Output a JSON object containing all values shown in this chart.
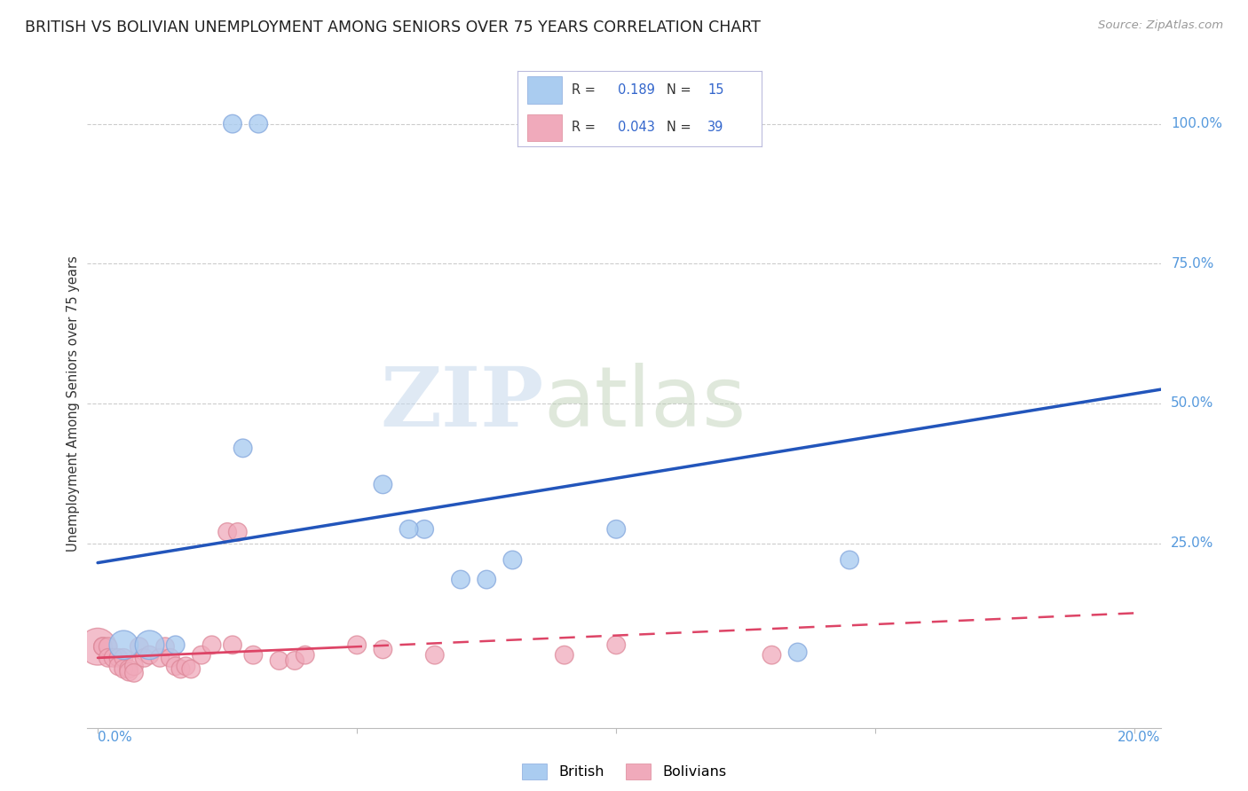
{
  "title": "BRITISH VS BOLIVIAN UNEMPLOYMENT AMONG SENIORS OVER 75 YEARS CORRELATION CHART",
  "source": "Source: ZipAtlas.com",
  "ylabel": "Unemployment Among Seniors over 75 years",
  "ytick_labels": [
    "100.0%",
    "75.0%",
    "50.0%",
    "25.0%"
  ],
  "ytick_values": [
    1.0,
    0.75,
    0.5,
    0.25
  ],
  "xlim": [
    -0.002,
    0.205
  ],
  "ylim": [
    -0.08,
    1.08
  ],
  "legend_british_R": "0.189",
  "legend_british_N": "15",
  "legend_bolivian_R": "0.043",
  "legend_bolivian_N": "39",
  "british_color": "#aaccf0",
  "british_edge_color": "#88aade",
  "bolivian_color": "#f0aabb",
  "bolivian_edge_color": "#dd8899",
  "british_line_color": "#2255bb",
  "bolivian_line_color": "#dd4466",
  "british_line_y0": 0.215,
  "british_line_y1": 0.525,
  "bolivian_line_y0": 0.045,
  "bolivian_line_y1": 0.125,
  "grid_color": "#cccccc",
  "spine_color": "#bbbbbb",
  "right_label_color": "#5599dd",
  "british_points": [
    [
      0.026,
      1.0
    ],
    [
      0.031,
      1.0
    ],
    [
      0.028,
      0.42
    ],
    [
      0.055,
      0.355
    ],
    [
      0.063,
      0.275
    ],
    [
      0.07,
      0.185
    ],
    [
      0.075,
      0.185
    ],
    [
      0.08,
      0.22
    ],
    [
      0.06,
      0.275
    ],
    [
      0.1,
      0.275
    ],
    [
      0.005,
      0.068
    ],
    [
      0.01,
      0.068
    ],
    [
      0.015,
      0.068
    ],
    [
      0.145,
      0.22
    ],
    [
      0.135,
      0.055
    ]
  ],
  "bolivian_points": [
    [
      0.0,
      0.065
    ],
    [
      0.001,
      0.065
    ],
    [
      0.001,
      0.065
    ],
    [
      0.002,
      0.065
    ],
    [
      0.002,
      0.045
    ],
    [
      0.003,
      0.045
    ],
    [
      0.004,
      0.045
    ],
    [
      0.004,
      0.03
    ],
    [
      0.005,
      0.045
    ],
    [
      0.005,
      0.025
    ],
    [
      0.006,
      0.025
    ],
    [
      0.006,
      0.02
    ],
    [
      0.007,
      0.03
    ],
    [
      0.007,
      0.018
    ],
    [
      0.008,
      0.065
    ],
    [
      0.009,
      0.045
    ],
    [
      0.01,
      0.05
    ],
    [
      0.012,
      0.045
    ],
    [
      0.013,
      0.065
    ],
    [
      0.014,
      0.045
    ],
    [
      0.015,
      0.03
    ],
    [
      0.016,
      0.025
    ],
    [
      0.017,
      0.03
    ],
    [
      0.018,
      0.025
    ],
    [
      0.02,
      0.05
    ],
    [
      0.022,
      0.068
    ],
    [
      0.025,
      0.27
    ],
    [
      0.026,
      0.068
    ],
    [
      0.027,
      0.27
    ],
    [
      0.03,
      0.05
    ],
    [
      0.035,
      0.04
    ],
    [
      0.038,
      0.04
    ],
    [
      0.04,
      0.05
    ],
    [
      0.05,
      0.068
    ],
    [
      0.055,
      0.06
    ],
    [
      0.065,
      0.05
    ],
    [
      0.09,
      0.05
    ],
    [
      0.1,
      0.068
    ],
    [
      0.13,
      0.05
    ]
  ],
  "british_sizes": [
    220,
    220,
    220,
    220,
    220,
    220,
    220,
    220,
    220,
    220,
    550,
    550,
    220,
    220,
    220
  ],
  "bolivian_sizes": [
    900,
    220,
    220,
    220,
    220,
    220,
    220,
    220,
    220,
    220,
    220,
    220,
    220,
    220,
    220,
    220,
    220,
    220,
    220,
    220,
    220,
    220,
    220,
    220,
    220,
    220,
    220,
    220,
    220,
    220,
    220,
    220,
    220,
    220,
    220,
    220,
    220,
    220,
    220
  ],
  "bolivian_line_start": 0.0,
  "bolivian_line_end": 0.2,
  "british_line_start": 0.0,
  "british_line_end": 0.205
}
